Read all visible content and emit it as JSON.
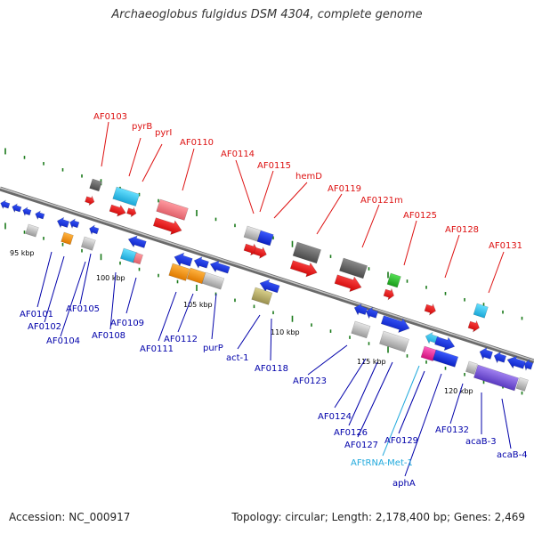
{
  "title": "Archaeoglobus fulgidus DSM 4304, complete genome",
  "footer": {
    "accession": "Accession: NC_000917",
    "summary": "Topology: circular; Length: 2,178,400 bp; Genes: 2,469"
  },
  "colors": {
    "backbone": "#8a8a8a",
    "tick": "#1a7a1a",
    "label_top": "#dd1111",
    "label_bottom": "#0000aa",
    "label_trna": "#22aadd"
  },
  "kbp_labels": [
    "95 kbp",
    "100 kbp",
    "105 kbp",
    "110 kbp",
    "115 kbp",
    "120 kbp"
  ],
  "top_labels": [
    "AF0103",
    "pyrB",
    "pyrI",
    "AF0110",
    "AF0114",
    "AF0115",
    "hemD",
    "AF0119",
    "AF0121m",
    "AF0125",
    "AF0128",
    "AF0131"
  ],
  "bottom_labels": [
    "AF0101",
    "AF0102",
    "AF0104",
    "AF0105",
    "AF0108",
    "AF0109",
    "AF0111",
    "AF0112",
    "purP",
    "act-1",
    "AF0118",
    "AF0123",
    "AF0124",
    "AF0126",
    "AF0127",
    "AF0129",
    "AFtRNA-Met-1",
    "aphA",
    "AF0132",
    "acaB-3",
    "acaB-4"
  ]
}
